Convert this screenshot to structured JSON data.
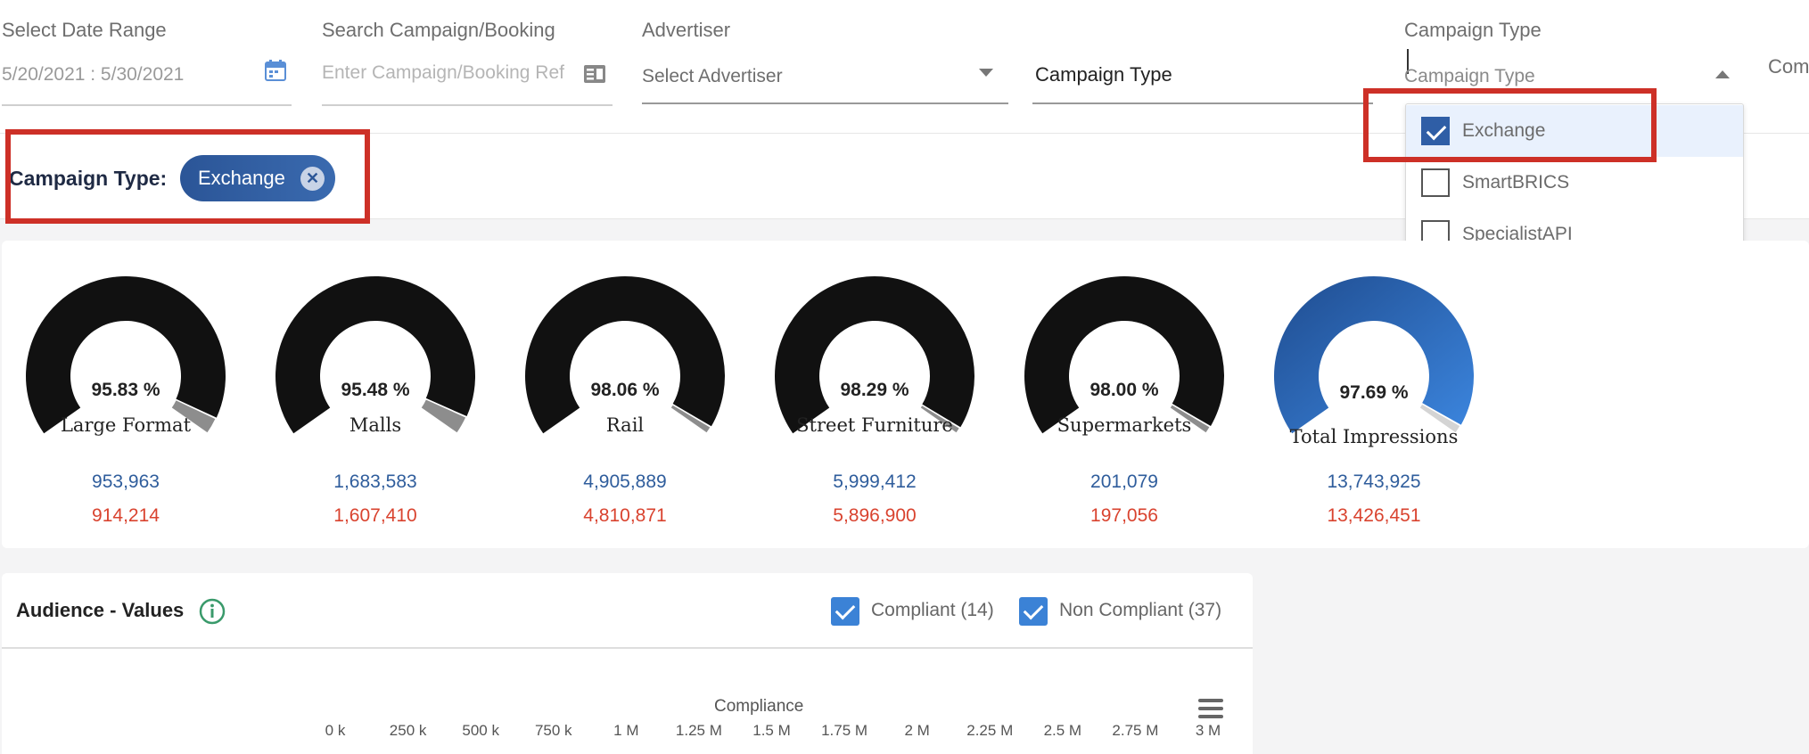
{
  "filters": {
    "date_range": {
      "label": "Select Date Range",
      "value": "5/20/2021 : 5/30/2021"
    },
    "search": {
      "label": "Search Campaign/Booking",
      "placeholder": "Enter Campaign/Booking Ref"
    },
    "advertiser": {
      "label": "Advertiser",
      "placeholder": "Select Advertiser"
    },
    "campaign_type_field": {
      "value": "Campaign Type"
    },
    "campaign_type_select": {
      "label": "Campaign Type",
      "placeholder": "Campaign Type"
    },
    "compliance_cut": "Com"
  },
  "dropdown": {
    "items": [
      {
        "label": "Exchange",
        "checked": true
      },
      {
        "label": "SmartBRICS",
        "checked": false
      },
      {
        "label": "SpecialistAPI",
        "checked": false
      }
    ]
  },
  "applied": {
    "label": "Campaign Type:",
    "chip": "Exchange"
  },
  "gauges": [
    {
      "percent_label": "95.83 %",
      "percent": 95.83,
      "name": "Large Format",
      "total": "953,963",
      "compliant": "914,214"
    },
    {
      "percent_label": "95.48 %",
      "percent": 95.48,
      "name": "Malls",
      "total": "1,683,583",
      "compliant": "1,607,410"
    },
    {
      "percent_label": "98.06 %",
      "percent": 98.06,
      "name": "Rail",
      "total": "4,905,889",
      "compliant": "4,810,871"
    },
    {
      "percent_label": "98.29 %",
      "percent": 98.29,
      "name": "Street Furniture",
      "total": "5,999,412",
      "compliant": "5,896,900"
    },
    {
      "percent_label": "98.00 %",
      "percent": 98.0,
      "name": "Supermarkets",
      "total": "201,079",
      "compliant": "197,056"
    },
    {
      "percent_label": "97.69 %",
      "percent": 97.69,
      "name": "Total Impressions",
      "total": "13,743,925",
      "compliant": "13,426,451"
    }
  ],
  "audience": {
    "title": "Audience - Values",
    "legend": [
      {
        "label": "Compliant (14)",
        "checked": true
      },
      {
        "label": "Non Compliant (37)",
        "checked": true
      }
    ],
    "chart_title": "Compliance",
    "ticks": [
      "0 k",
      "250 k",
      "500 k",
      "750 k",
      "1 M",
      "1.25 M",
      "1.5 M",
      "1.75 M",
      "2 M",
      "2.25 M",
      "2.5 M",
      "2.75 M",
      "3 M"
    ]
  },
  "colors": {
    "brand_blue": "#2f5ea6",
    "gauge_dark": "#111111",
    "total_gauge": "#2a5ba3",
    "value_blue": "#2f5d9c",
    "value_red": "#d9432f",
    "highlight": "#cd3027"
  }
}
